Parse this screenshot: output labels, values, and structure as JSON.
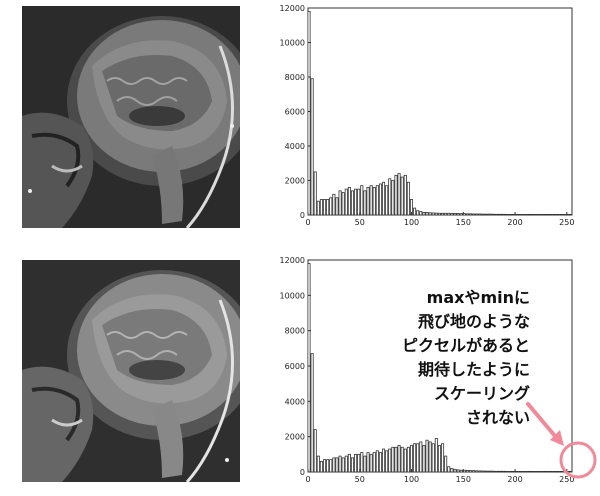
{
  "chart_data": [
    {
      "type": "bar",
      "ylim": [
        0,
        12000
      ],
      "xlim": [
        0,
        255
      ],
      "xticks": [
        "0",
        "50",
        "100",
        "150",
        "200",
        "250"
      ],
      "yticks": [
        "0",
        "2000",
        "4000",
        "6000",
        "8000",
        "10000",
        "12000"
      ],
      "x": [
        0,
        3,
        6,
        9,
        12,
        15,
        18,
        21,
        24,
        27,
        30,
        33,
        36,
        39,
        42,
        45,
        48,
        51,
        54,
        57,
        60,
        63,
        66,
        69,
        72,
        75,
        78,
        81,
        84,
        87,
        90,
        93,
        96,
        99,
        102,
        105,
        108,
        111,
        114,
        117,
        120,
        123,
        126,
        129,
        132,
        135,
        138,
        141,
        144,
        147,
        150,
        153,
        156,
        159,
        162,
        165,
        168,
        171,
        174,
        177,
        180,
        183,
        186,
        189,
        192,
        195,
        198,
        201,
        204,
        207,
        210,
        213,
        216,
        219,
        222,
        225,
        228,
        231,
        234,
        237,
        240,
        243,
        246,
        249,
        252
      ],
      "values": [
        11800,
        7900,
        2500,
        800,
        900,
        900,
        900,
        1000,
        1200,
        1000,
        1400,
        1300,
        1500,
        1600,
        1400,
        1500,
        1500,
        1700,
        1400,
        1600,
        1700,
        1600,
        1700,
        1800,
        1900,
        1700,
        2100,
        2000,
        2300,
        2400,
        2200,
        2300,
        1900,
        900,
        400,
        250,
        200,
        150,
        150,
        130,
        120,
        110,
        100,
        100,
        100,
        100,
        90,
        90,
        90,
        80,
        80,
        70,
        70,
        60,
        60,
        60,
        50,
        50,
        50,
        50,
        40,
        40,
        40,
        40,
        30,
        30,
        30,
        30,
        30,
        30,
        20,
        20,
        20,
        20,
        20,
        20,
        20,
        20,
        20,
        20,
        20,
        20,
        20,
        20,
        20
      ]
    },
    {
      "type": "bar",
      "ylim": [
        0,
        12000
      ],
      "xlim": [
        0,
        255
      ],
      "xticks": [
        "0",
        "50",
        "100",
        "150",
        "200",
        "250"
      ],
      "yticks": [
        "0",
        "2000",
        "4000",
        "6000",
        "8000",
        "10000",
        "12000"
      ],
      "x": [
        0,
        3,
        6,
        9,
        12,
        15,
        18,
        21,
        24,
        27,
        30,
        33,
        36,
        39,
        42,
        45,
        48,
        51,
        54,
        57,
        60,
        63,
        66,
        69,
        72,
        75,
        78,
        81,
        84,
        87,
        90,
        93,
        96,
        99,
        102,
        105,
        108,
        111,
        114,
        117,
        120,
        123,
        126,
        129,
        132,
        135,
        138,
        141,
        144,
        147,
        150,
        153,
        156,
        159,
        162,
        165,
        168,
        171,
        174,
        177,
        180,
        183,
        186,
        189,
        192,
        195,
        198,
        201,
        204,
        207,
        210,
        213,
        216,
        219,
        222,
        225,
        228,
        231,
        234,
        237,
        240,
        243,
        246,
        249,
        252
      ],
      "values": [
        11800,
        6700,
        2400,
        900,
        600,
        700,
        700,
        700,
        800,
        800,
        900,
        800,
        900,
        1000,
        800,
        1000,
        1000,
        1100,
        900,
        1100,
        1000,
        1100,
        1200,
        1100,
        1300,
        1200,
        1300,
        1400,
        1400,
        1500,
        1400,
        1300,
        1400,
        1500,
        1600,
        1600,
        1700,
        1500,
        1800,
        1700,
        1600,
        1900,
        1500,
        1600,
        900,
        300,
        200,
        150,
        120,
        100,
        100,
        90,
        80,
        80,
        70,
        60,
        60,
        50,
        50,
        50,
        40,
        40,
        40,
        40,
        30,
        30,
        30,
        30,
        30,
        30,
        20,
        20,
        20,
        20,
        20,
        20,
        20,
        20,
        20,
        20,
        20,
        20,
        20,
        20,
        20
      ]
    }
  ],
  "annotation": {
    "lines": [
      "maxやminに",
      "飛び地のような",
      "ピクセルがあると",
      "期待したように",
      "スケーリング",
      "されない"
    ],
    "color": "#f08a98"
  }
}
